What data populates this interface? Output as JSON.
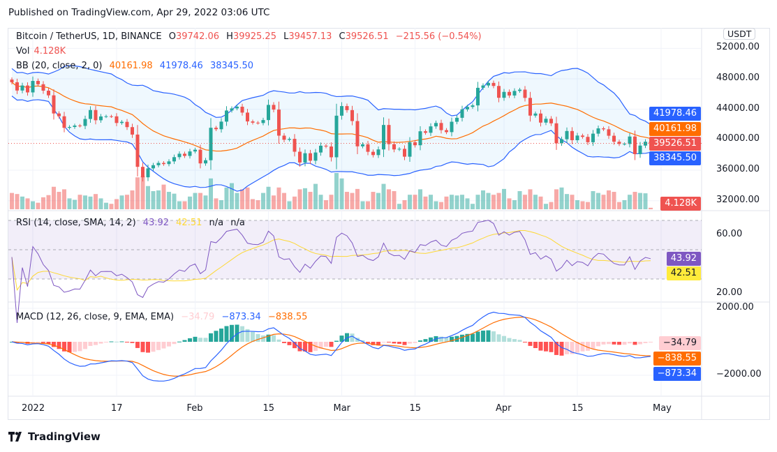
{
  "header": {
    "published": "Published on TradingView.com, Apr 29, 2022 03:06 UTC"
  },
  "footer": {
    "logo_text": "TradingView"
  },
  "currency_button": "USDT",
  "legend": {
    "symbol": "Bitcoin / TetherUS, 1D, BINANCE",
    "o_label": "O",
    "open": "39742.06",
    "h_label": "H",
    "high": "39925.25",
    "l_label": "L",
    "low": "39457.13",
    "c_label": "C",
    "close": "39526.51",
    "change": "−215.56 (−0.54%)",
    "vol_label": "Vol",
    "vol": "4.128K",
    "bb_label": "BB (20, close, 2, 0)",
    "bb_basis": "40161.98",
    "bb_upper": "41978.46",
    "bb_lower": "38345.50",
    "rsi_label": "RSI (14, close, SMA, 14, 2)",
    "rsi": "43.92",
    "rsi_sma": "42.51",
    "rsi_na1": "n/a",
    "rsi_na2": "n/a",
    "macd_label": "MACD (12, 26, close, 9, EMA, EMA)",
    "macd_hist": "−34.79",
    "macd": "−873.34",
    "macd_signal": "−838.55"
  },
  "badges": {
    "bb_upper": "41978.46",
    "bb_basis": "40161.98",
    "last": "39526.51",
    "bb_lower": "38345.50",
    "vol": "4.128K",
    "rsi": "43.92",
    "rsi_sma": "42.51",
    "macd_hist": "−34.79",
    "macd_signal": "−838.55",
    "macd": "−873.34"
  },
  "colors": {
    "up": "#26a69a",
    "down": "#ef5350",
    "bb_band": "#2962ff",
    "bb_basis": "#ff6d00",
    "rsi": "#7e57c2",
    "rsi_sma": "#fdd835",
    "macd": "#2962ff",
    "signal": "#ff6d00"
  },
  "chart_data": {
    "type": "candlestick",
    "price_ticks": [
      "52000.00",
      "48000.00",
      "44000.00",
      "40000.00",
      "36000.00",
      "32000.00"
    ],
    "rsi_ticks": [
      "60.00",
      "20.00"
    ],
    "macd_ticks": [
      "2000.00",
      "−2000.00"
    ],
    "x_ticks": [
      {
        "label": "2022",
        "date": "01-01"
      },
      {
        "label": "17",
        "date": "01-17"
      },
      {
        "label": "Feb",
        "date": "02-01"
      },
      {
        "label": "15",
        "date": "02-15"
      },
      {
        "label": "Mar",
        "date": "03-01"
      },
      {
        "label": "15",
        "date": "03-15"
      },
      {
        "label": "Apr",
        "date": "04-01"
      },
      {
        "label": "15",
        "date": "04-15"
      },
      {
        "label": "May",
        "date": "05-01"
      }
    ],
    "dates": [
      "12-28",
      "12-29",
      "12-30",
      "12-31",
      "01-01",
      "01-02",
      "01-03",
      "01-04",
      "01-05",
      "01-06",
      "01-07",
      "01-08",
      "01-09",
      "01-10",
      "01-11",
      "01-12",
      "01-13",
      "01-14",
      "01-15",
      "01-16",
      "01-17",
      "01-18",
      "01-19",
      "01-20",
      "01-21",
      "01-22",
      "01-23",
      "01-24",
      "01-25",
      "01-26",
      "01-27",
      "01-28",
      "01-29",
      "01-30",
      "01-31",
      "02-01",
      "02-02",
      "02-03",
      "02-04",
      "02-05",
      "02-06",
      "02-07",
      "02-08",
      "02-09",
      "02-10",
      "02-11",
      "02-12",
      "02-13",
      "02-14",
      "02-15",
      "02-16",
      "02-17",
      "02-18",
      "02-19",
      "02-20",
      "02-21",
      "02-22",
      "02-23",
      "02-24",
      "02-25",
      "02-26",
      "02-27",
      "02-28",
      "03-01",
      "03-02",
      "03-03",
      "03-04",
      "03-05",
      "03-06",
      "03-07",
      "03-08",
      "03-09",
      "03-10",
      "03-11",
      "03-12",
      "03-13",
      "03-14",
      "03-15",
      "03-16",
      "03-17",
      "03-18",
      "03-19",
      "03-20",
      "03-21",
      "03-22",
      "03-23",
      "03-24",
      "03-25",
      "03-26",
      "03-27",
      "03-28",
      "03-29",
      "03-30",
      "03-31",
      "04-01",
      "04-02",
      "04-03",
      "04-04",
      "04-05",
      "04-06",
      "04-07",
      "04-08",
      "04-09",
      "04-10",
      "04-11",
      "04-12",
      "04-13",
      "04-14",
      "04-15",
      "04-16",
      "04-17",
      "04-18",
      "04-19",
      "04-20",
      "04-21",
      "04-22",
      "04-23",
      "04-24",
      "04-25",
      "04-26",
      "04-27",
      "04-28",
      "04-29"
    ],
    "close": [
      47545,
      46464,
      47120,
      46216,
      47722,
      47286,
      46446,
      45832,
      43451,
      43082,
      41566,
      41679,
      41864,
      41822,
      42729,
      43902,
      42560,
      43059,
      43084,
      43071,
      42201,
      42352,
      41660,
      40680,
      36445,
      35071,
      36244,
      36660,
      36958,
      36809,
      37160,
      37716,
      38166,
      37881,
      38466,
      38694,
      36896,
      37311,
      41574,
      41382,
      42380,
      43840,
      44118,
      44338,
      43565,
      42407,
      42244,
      42197,
      42586,
      44575,
      43961,
      40538,
      40000,
      40118,
      38431,
      37017,
      38230,
      37250,
      38328,
      39219,
      39116,
      37700,
      43160,
      44421,
      43892,
      42454,
      39137,
      39400,
      38420,
      37988,
      38730,
      41941,
      39422,
      38730,
      38807,
      37778,
      39671,
      39280,
      41114,
      40917,
      41757,
      42201,
      41262,
      41002,
      42364,
      42882,
      43991,
      44313,
      44511,
      46820,
      47128,
      47465,
      47062,
      45510,
      46283,
      45811,
      46407,
      46580,
      45497,
      43170,
      43444,
      42252,
      42753,
      42158,
      39530,
      40074,
      41147,
      39942,
      40552,
      40378,
      39678,
      40801,
      41494,
      41374,
      40527,
      39740,
      39450,
      39450,
      40426,
      38112,
      39235,
      39742,
      39526.51
    ],
    "volume_k": [
      45,
      42,
      35,
      30,
      22,
      18,
      33,
      39,
      62,
      48,
      55,
      30,
      26,
      40,
      38,
      35,
      42,
      30,
      18,
      15,
      28,
      38,
      40,
      52,
      88,
      92,
      64,
      50,
      52,
      68,
      48,
      43,
      22,
      22,
      35,
      45,
      45,
      38,
      85,
      30,
      25,
      60,
      72,
      45,
      55,
      60,
      28,
      25,
      45,
      62,
      38,
      60,
      45,
      22,
      35,
      55,
      58,
      48,
      70,
      40,
      25,
      40,
      100,
      85,
      48,
      45,
      56,
      22,
      22,
      48,
      45,
      70,
      55,
      50,
      15,
      25,
      40,
      40,
      55,
      35,
      40,
      22,
      20,
      35,
      40,
      38,
      40,
      30,
      15,
      40,
      52,
      45,
      40,
      45,
      56,
      30,
      25,
      50,
      40,
      55,
      40,
      35,
      15,
      20,
      55,
      60,
      42,
      40,
      25,
      22,
      20,
      50,
      45,
      40,
      52,
      48,
      20,
      25,
      40,
      48,
      45,
      44,
      4.128
    ]
  }
}
